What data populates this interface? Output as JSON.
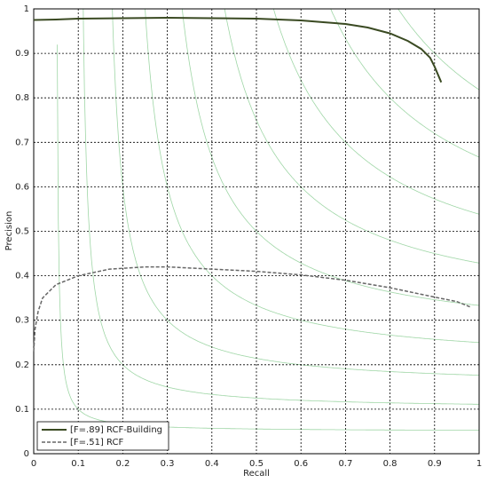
{
  "chart_data": {
    "type": "line",
    "xlabel": "Recall",
    "ylabel": "Precision",
    "xlim": [
      0,
      1
    ],
    "ylim": [
      0,
      1
    ],
    "xticks": [
      0,
      0.1,
      0.2,
      0.3,
      0.4,
      0.5,
      0.6,
      0.7,
      0.8,
      0.9,
      1
    ],
    "yticks": [
      0,
      0.1,
      0.2,
      0.3,
      0.4,
      0.5,
      0.6,
      0.7,
      0.8,
      0.9,
      1
    ],
    "grid": true,
    "legend": "lower left",
    "iso_f": [
      0.1,
      0.2,
      0.3,
      0.4,
      0.5,
      0.6,
      0.7,
      0.8,
      0.9
    ],
    "iso_f_color": "#9fd6a6",
    "series": [
      {
        "name": "[F=.89] RCF-Building",
        "color": "#3a4a22",
        "dash": false,
        "x": [
          0,
          0.05,
          0.1,
          0.2,
          0.3,
          0.4,
          0.5,
          0.6,
          0.65,
          0.7,
          0.75,
          0.8,
          0.84,
          0.87,
          0.89,
          0.9,
          0.915
        ],
        "values": [
          0.975,
          0.976,
          0.978,
          0.979,
          0.98,
          0.979,
          0.978,
          0.974,
          0.97,
          0.966,
          0.958,
          0.945,
          0.928,
          0.91,
          0.89,
          0.87,
          0.835
        ]
      },
      {
        "name": "[F=.51] RCF",
        "color": "#666666",
        "dash": true,
        "x": [
          0,
          0.003,
          0.01,
          0.02,
          0.05,
          0.1,
          0.17,
          0.25,
          0.3,
          0.4,
          0.5,
          0.6,
          0.7,
          0.8,
          0.9,
          0.95,
          0.98
        ],
        "values": [
          0.23,
          0.28,
          0.32,
          0.35,
          0.38,
          0.4,
          0.415,
          0.42,
          0.42,
          0.415,
          0.41,
          0.402,
          0.39,
          0.373,
          0.352,
          0.342,
          0.33
        ]
      }
    ]
  }
}
